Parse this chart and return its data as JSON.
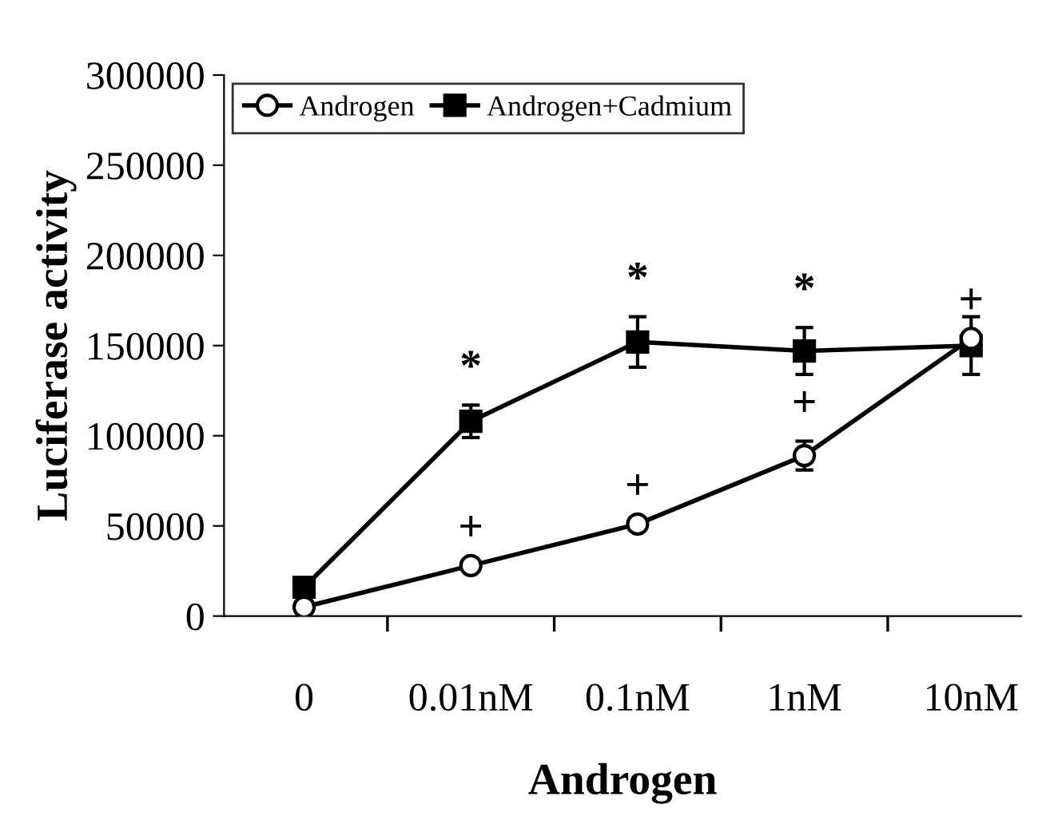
{
  "chart_data": {
    "type": "line",
    "xlabel": "Androgen",
    "ylabel": "Luciferase activity",
    "categories": [
      "0",
      "0.01nM",
      "0.1nM",
      "1nM",
      "10nM"
    ],
    "series": [
      {
        "name": "Androgen",
        "color": "#000000",
        "marker": "circle",
        "values": [
          5000,
          28000,
          51000,
          89000,
          154000
        ],
        "errors": [
          null,
          null,
          null,
          8000,
          null
        ]
      },
      {
        "name": "Androgen+Cadmium",
        "color": "#000000",
        "marker": "square",
        "values": [
          16000,
          108000,
          152000,
          147000,
          150000
        ],
        "errors": [
          null,
          9000,
          14000,
          13000,
          16000
        ]
      }
    ],
    "ylim": [
      0,
      300000
    ],
    "yticks": [
      0,
      50000,
      100000,
      150000,
      200000,
      250000,
      300000
    ],
    "grid": false,
    "legend": "top left",
    "line_style": "solid",
    "annotations": [
      {
        "text": "*",
        "x": "0.01nM",
        "y": 108000
      },
      {
        "text": "*",
        "x": "0.1nM",
        "y": 152000
      },
      {
        "text": "*",
        "x": "1nM",
        "y": 147000
      },
      {
        "text": "+",
        "x": "0.01nM",
        "y": 28000
      },
      {
        "text": "+",
        "x": "0.1nM",
        "y": 51000
      },
      {
        "text": "+",
        "x": "1nM",
        "y": 89000
      },
      {
        "text": "+",
        "x": "10nM",
        "y": 154000
      }
    ]
  }
}
